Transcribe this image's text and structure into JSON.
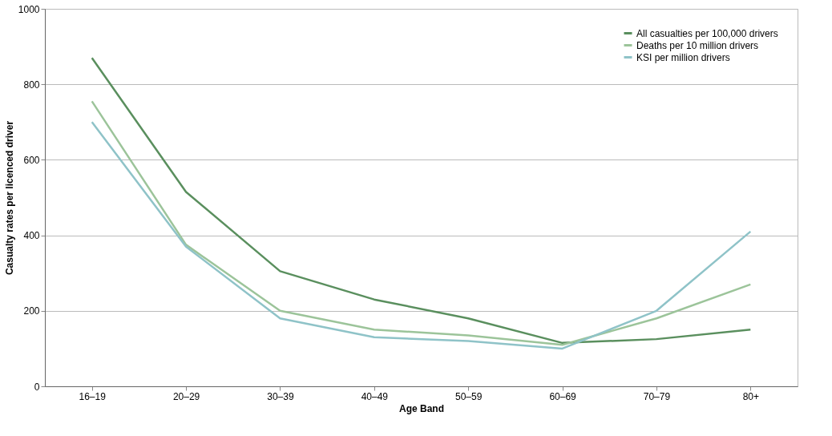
{
  "chart_data": {
    "type": "line",
    "xlabel": "Age Band",
    "ylabel": "Casualty rates per  licenced driver",
    "categories": [
      "16–19",
      "20–29",
      "30–39",
      "40–49",
      "50–59",
      "60–69",
      "70–79",
      "80+"
    ],
    "series": [
      {
        "name": "All casualties per 100,000 drivers",
        "color": "#5a8f5e",
        "values": [
          870,
          515,
          305,
          230,
          180,
          115,
          125,
          150
        ]
      },
      {
        "name": "Deaths per 10 million drivers",
        "color": "#9cc49a",
        "values": [
          755,
          375,
          200,
          150,
          135,
          110,
          180,
          270
        ]
      },
      {
        "name": "KSI per million drivers",
        "color": "#8fc3c8",
        "values": [
          700,
          370,
          180,
          130,
          120,
          100,
          200,
          410
        ]
      }
    ],
    "ylim": [
      0,
      1000
    ],
    "yticks": [
      0,
      200,
      400,
      600,
      800,
      1000
    ],
    "grid": "y",
    "legend": "top right",
    "marker": "none",
    "line_style": "solid"
  }
}
